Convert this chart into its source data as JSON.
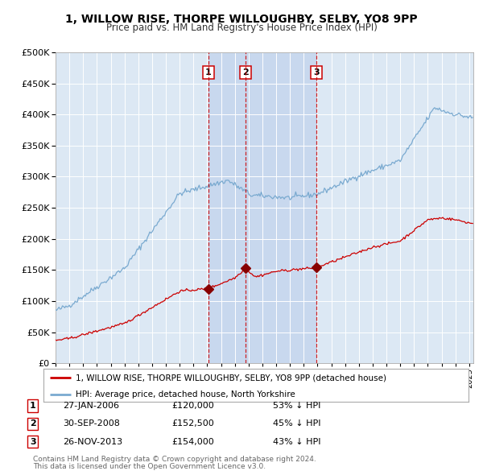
{
  "title": "1, WILLOW RISE, THORPE WILLOUGHBY, SELBY, YO8 9PP",
  "subtitle": "Price paid vs. HM Land Registry's House Price Index (HPI)",
  "legend_label_red": "1, WILLOW RISE, THORPE WILLOUGHBY, SELBY, YO8 9PP (detached house)",
  "legend_label_blue": "HPI: Average price, detached house, North Yorkshire",
  "footer1": "Contains HM Land Registry data © Crown copyright and database right 2024.",
  "footer2": "This data is licensed under the Open Government Licence v3.0.",
  "transactions": [
    {
      "num": "1",
      "date": "27-JAN-2006",
      "price": 120000,
      "pct": "53% ↓ HPI",
      "x": 2006.07
    },
    {
      "num": "2",
      "date": "30-SEP-2008",
      "price": 152500,
      "pct": "45% ↓ HPI",
      "x": 2008.75
    },
    {
      "num": "3",
      "date": "26-NOV-2013",
      "price": 154000,
      "pct": "43% ↓ HPI",
      "x": 2013.9
    }
  ],
  "ylim": [
    0,
    500000
  ],
  "xlim_start": 1995.0,
  "xlim_end": 2025.3,
  "background_color": "#ffffff",
  "plot_bg_color": "#dce8f4",
  "grid_color": "#ffffff",
  "shade_color": "#c8d8ee",
  "red_line_color": "#cc0000",
  "blue_line_color": "#7aaad0",
  "vline_color": "#cc0000",
  "marker_color": "#880000"
}
